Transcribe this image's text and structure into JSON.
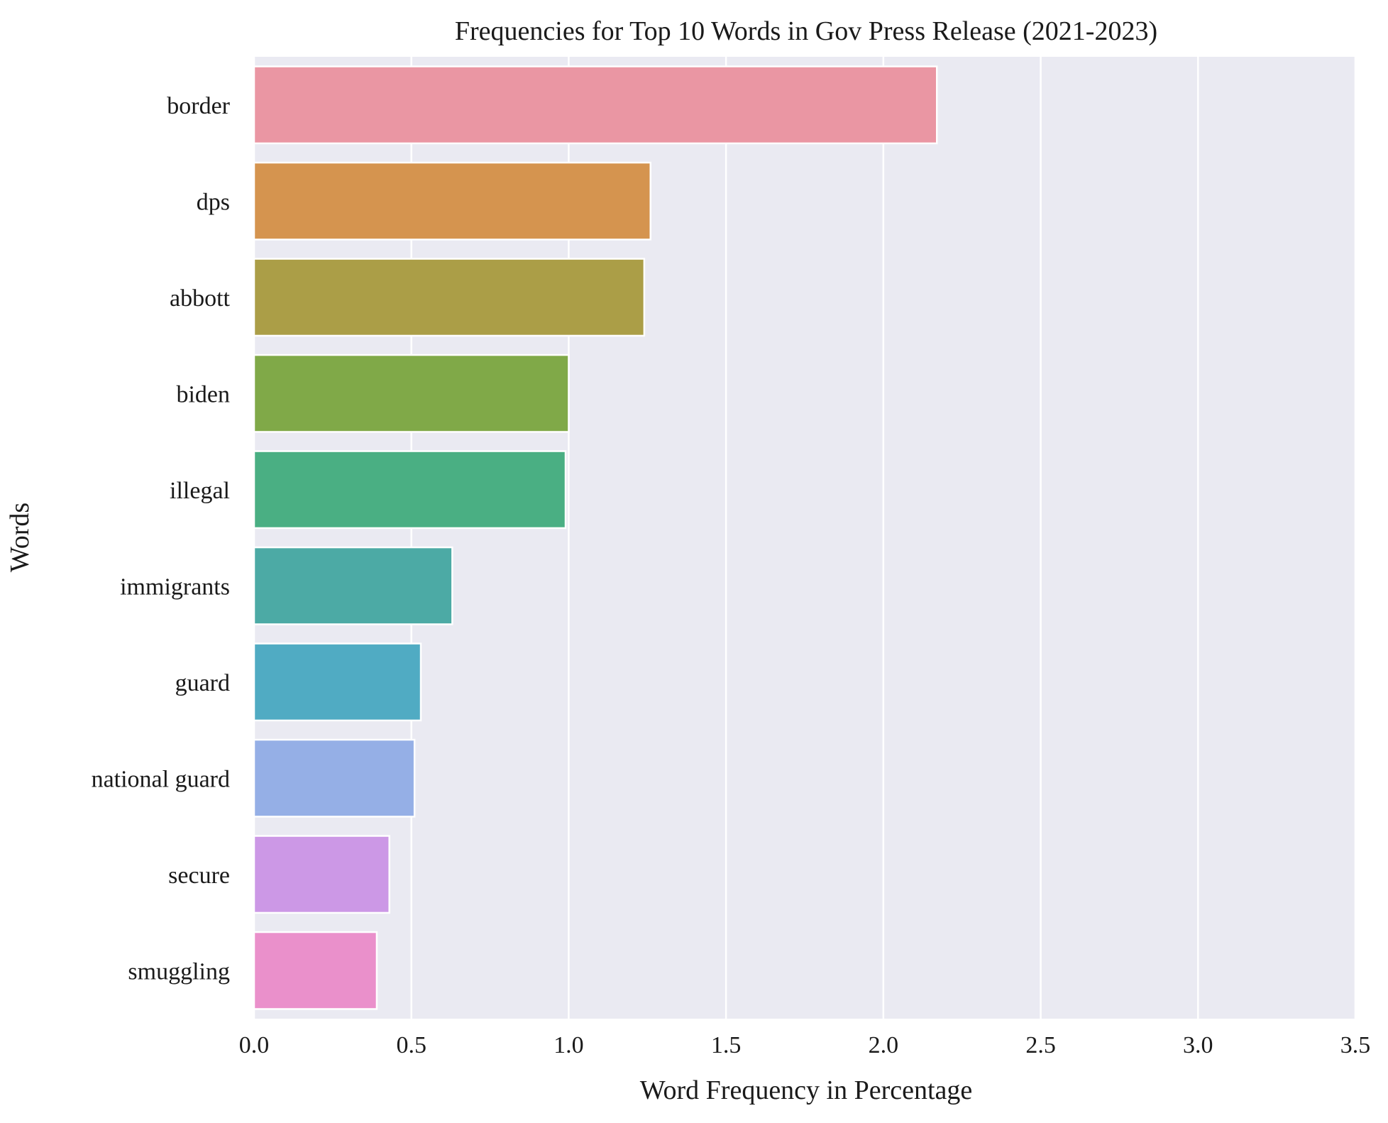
{
  "chart_data": {
    "type": "bar",
    "orientation": "horizontal",
    "title": "Frequencies for Top 10 Words in Gov Press Release (2021-2023)",
    "xlabel": "Word Frequency in Percentage",
    "ylabel": "Words",
    "xlim": [
      0,
      3.5
    ],
    "xticks": [
      "0.0",
      "0.5",
      "1.0",
      "1.5",
      "2.0",
      "2.5",
      "3.0",
      "3.5"
    ],
    "grid": true,
    "categories": [
      "border",
      "dps",
      "abbott",
      "biden",
      "illegal",
      "immigrants",
      "guard",
      "national guard",
      "secure",
      "smuggling"
    ],
    "values": [
      2.17,
      1.26,
      1.24,
      1.0,
      0.99,
      0.63,
      0.53,
      0.51,
      0.43,
      0.39
    ],
    "colors": [
      "#ea96a3",
      "#d5944f",
      "#ab9e47",
      "#80a948",
      "#4aaf83",
      "#4caaa5",
      "#50abc3",
      "#95afe6",
      "#cc98e6",
      "#ea90cb"
    ]
  }
}
